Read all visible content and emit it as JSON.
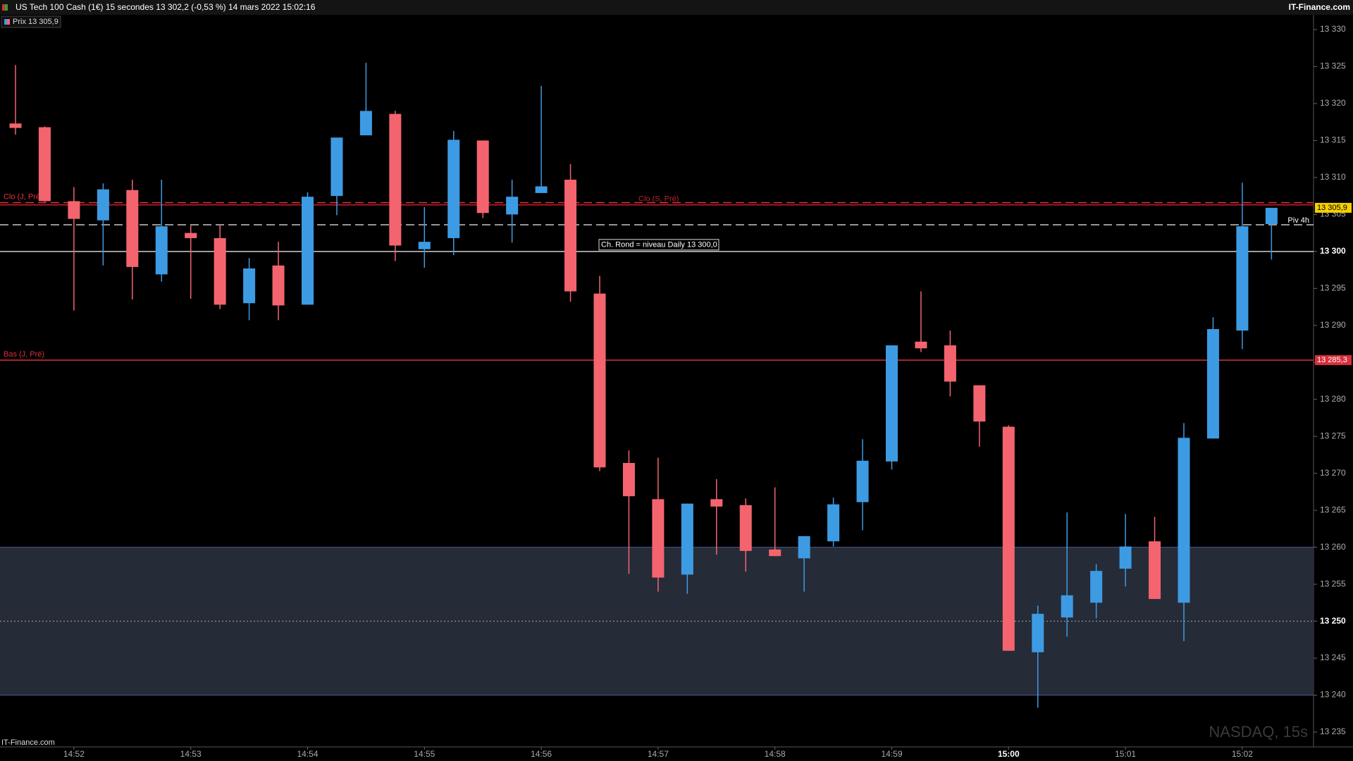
{
  "chart_data": {
    "type": "candlestick",
    "title": "US Tech 100 Cash (1€) 15 secondes 13 302,2 (-0,53 %) 14 mars 2022 15:02:16",
    "source": "IT-Finance.com",
    "footer": "IT-Finance.com",
    "watermark": "NASDAQ, 15s",
    "legend": "Prix 13 305,9",
    "up_color": "#3d9be3",
    "down_color": "#f3646f",
    "categories": [
      null,
      null,
      "14:52",
      null,
      null,
      null,
      "14:53",
      null,
      null,
      null,
      "14:54",
      null,
      null,
      null,
      "14:55",
      null,
      null,
      null,
      "14:56",
      null,
      null,
      null,
      "14:57",
      null,
      null,
      null,
      "14:58",
      null,
      null,
      null,
      "14:59",
      null,
      null,
      null,
      "15:00",
      null,
      null,
      null,
      "15:01",
      null,
      null,
      null,
      "15:02",
      null
    ],
    "open": [
      13317.3,
      13316.8,
      13306.8,
      13304.2,
      13308.3,
      13296.9,
      13302.5,
      13301.8,
      13293.0,
      13298.1,
      13292.8,
      13307.5,
      13315.7,
      13318.6,
      13300.3,
      13301.8,
      13315.0,
      13305.0,
      13307.9,
      13309.7,
      13294.3,
      13271.4,
      13266.5,
      13256.3,
      13266.5,
      13265.7,
      13259.7,
      13258.5,
      13260.8,
      13266.1,
      13271.6,
      13287.8,
      13287.3,
      13281.9,
      13276.3,
      13245.8,
      13250.5,
      13252.5,
      13257.1,
      13260.8,
      13252.5,
      13274.7,
      13289.3,
      13303.7
    ],
    "high": [
      13325.2,
      13316.9,
      13308.7,
      13309.2,
      13309.7,
      13309.7,
      13303.5,
      13303.6,
      13299.1,
      13301.3,
      13308.0,
      13315.4,
      13325.5,
      13319.0,
      13306.0,
      13316.3,
      13315.0,
      13309.7,
      13322.4,
      13311.8,
      13296.7,
      13273.1,
      13272.1,
      13265.9,
      13269.2,
      13266.6,
      13268.1,
      13261.5,
      13266.7,
      13274.6,
      13287.3,
      13294.6,
      13289.3,
      13281.9,
      13276.5,
      13252.1,
      13264.7,
      13257.7,
      13264.5,
      13264.1,
      13276.8,
      13291.1,
      13309.3,
      13305.9
    ],
    "low": [
      13315.8,
      13306.7,
      13292.0,
      13298.1,
      13293.5,
      13295.9,
      13293.6,
      13292.2,
      13290.7,
      13290.7,
      13292.8,
      13304.9,
      13315.7,
      13298.7,
      13297.8,
      13299.5,
      13304.5,
      13301.2,
      13307.9,
      13293.2,
      13270.3,
      13256.4,
      13254.0,
      13253.7,
      13259.0,
      13256.7,
      13258.8,
      13254.0,
      13260.1,
      13262.3,
      13270.5,
      13286.4,
      13280.4,
      13273.6,
      13246.0,
      13238.3,
      13247.9,
      13250.4,
      13254.7,
      13253.0,
      13247.3,
      13274.7,
      13286.8,
      13298.9
    ],
    "close": [
      13316.7,
      13306.8,
      13304.4,
      13308.4,
      13297.9,
      13303.4,
      13301.8,
      13292.8,
      13297.7,
      13292.7,
      13307.4,
      13315.4,
      13319.0,
      13300.8,
      13301.3,
      13315.1,
      13305.2,
      13307.4,
      13308.8,
      13294.6,
      13270.8,
      13266.9,
      13255.9,
      13265.9,
      13265.5,
      13259.5,
      13258.8,
      13261.5,
      13265.8,
      13271.7,
      13287.3,
      13286.9,
      13282.4,
      13277.0,
      13246.0,
      13251.0,
      13253.5,
      13256.8,
      13260.1,
      13253.0,
      13274.8,
      13289.5,
      13303.4,
      13305.9
    ],
    "ylim": [
      13233,
      13332
    ],
    "yticks": [
      {
        "value": 13235,
        "label": "13 235"
      },
      {
        "value": 13240,
        "label": "13 240"
      },
      {
        "value": 13245,
        "label": "13 245"
      },
      {
        "value": 13250,
        "label": "13 250"
      },
      {
        "value": 13255,
        "label": "13 255"
      },
      {
        "value": 13260,
        "label": "13 260"
      },
      {
        "value": 13265,
        "label": "13 265"
      },
      {
        "value": 13270,
        "label": "13 270"
      },
      {
        "value": 13275,
        "label": "13 275"
      },
      {
        "value": 13280,
        "label": "13 280"
      },
      {
        "value": 13285,
        "label": "13 285"
      },
      {
        "value": 13290,
        "label": "13 290"
      },
      {
        "value": 13295,
        "label": "13 295"
      },
      {
        "value": 13300,
        "label": "13 300"
      },
      {
        "value": 13305,
        "label": "13 305"
      },
      {
        "value": 13310,
        "label": "13 310"
      },
      {
        "value": 13315,
        "label": "13 315"
      },
      {
        "value": 13320,
        "label": "13 320"
      },
      {
        "value": 13325,
        "label": "13 325"
      },
      {
        "value": 13330,
        "label": "13 330"
      }
    ],
    "zone": {
      "from": 13240,
      "to": 13260,
      "mid": 13250,
      "color": "#262b38"
    },
    "levels": [
      {
        "label": "Clo (J, Pré)",
        "value": 13306.6,
        "color": "#e8303c",
        "style": "dashed",
        "position": "left"
      },
      {
        "label": "Clo (S, Pré)",
        "value": 13306.3,
        "color": "#c81e2a",
        "style": "solid",
        "position": "middle"
      },
      {
        "label": "Piv 4h",
        "value": 13303.6,
        "color": "#c8c8c8",
        "style": "dashed",
        "position": "right"
      },
      {
        "label": "Ch. Rond = niveau Daily  13 300,0",
        "value": 13300,
        "color": "#d0d0d0",
        "style": "solid",
        "position": "box"
      },
      {
        "label": "Bas (J, Pré)",
        "value": 13285.3,
        "color": "#d8303c",
        "style": "solid",
        "position": "left",
        "tag": "13 285,3"
      }
    ],
    "price_tag": {
      "value": 13305.9,
      "label": "13 305,9"
    }
  }
}
